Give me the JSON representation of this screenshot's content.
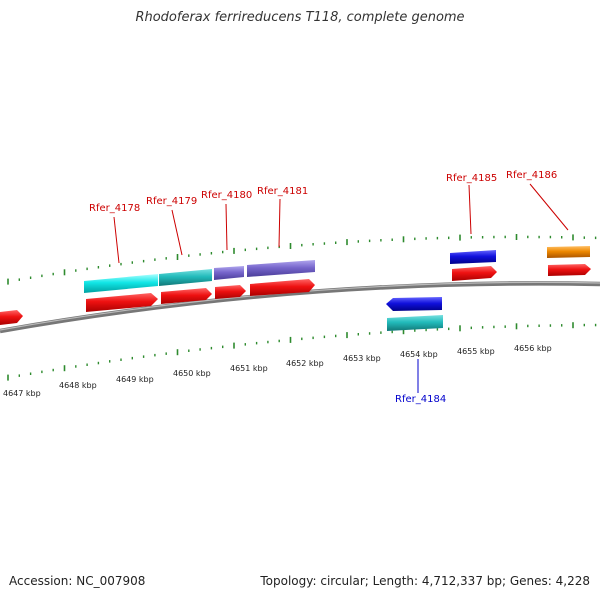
{
  "title": "Rhodoferax ferrireducens T118, complete genome",
  "footer": {
    "accession": "Accession: NC_007908",
    "summary": "Topology: circular; Length: 4,712,337 bp; Genes: 4,228"
  },
  "scale_labels": [
    "4647 kbp",
    "4648 kbp",
    "4649 kbp",
    "4650 kbp",
    "4651 kbp",
    "4652 kbp",
    "4653 kbp",
    "4654 kbp",
    "4655 kbp",
    "4656 kbp"
  ],
  "gene_labels": [
    {
      "id": "rfer_4178",
      "text": "Rfer_4178",
      "color": "#cc0000"
    },
    {
      "id": "rfer_4179",
      "text": "Rfer_4179",
      "color": "#cc0000"
    },
    {
      "id": "rfer_4180",
      "text": "Rfer_4180",
      "color": "#cc0000"
    },
    {
      "id": "rfer_4181",
      "text": "Rfer_4181",
      "color": "#cc0000"
    },
    {
      "id": "rfer_4185",
      "text": "Rfer_4185",
      "color": "#cc0000"
    },
    {
      "id": "rfer_4186",
      "text": "Rfer_4186",
      "color": "#cc0000"
    },
    {
      "id": "rfer_4184",
      "text": "Rfer_4184",
      "color": "#0000cc"
    }
  ],
  "colors": {
    "backbone": "#888888",
    "tick": "#338833",
    "cds": "#ee1111",
    "cyan": "#11dddd",
    "teal": "#22bbbb",
    "purple": "#7766cc",
    "blue": "#1111dd",
    "orange": "#ee8800"
  }
}
